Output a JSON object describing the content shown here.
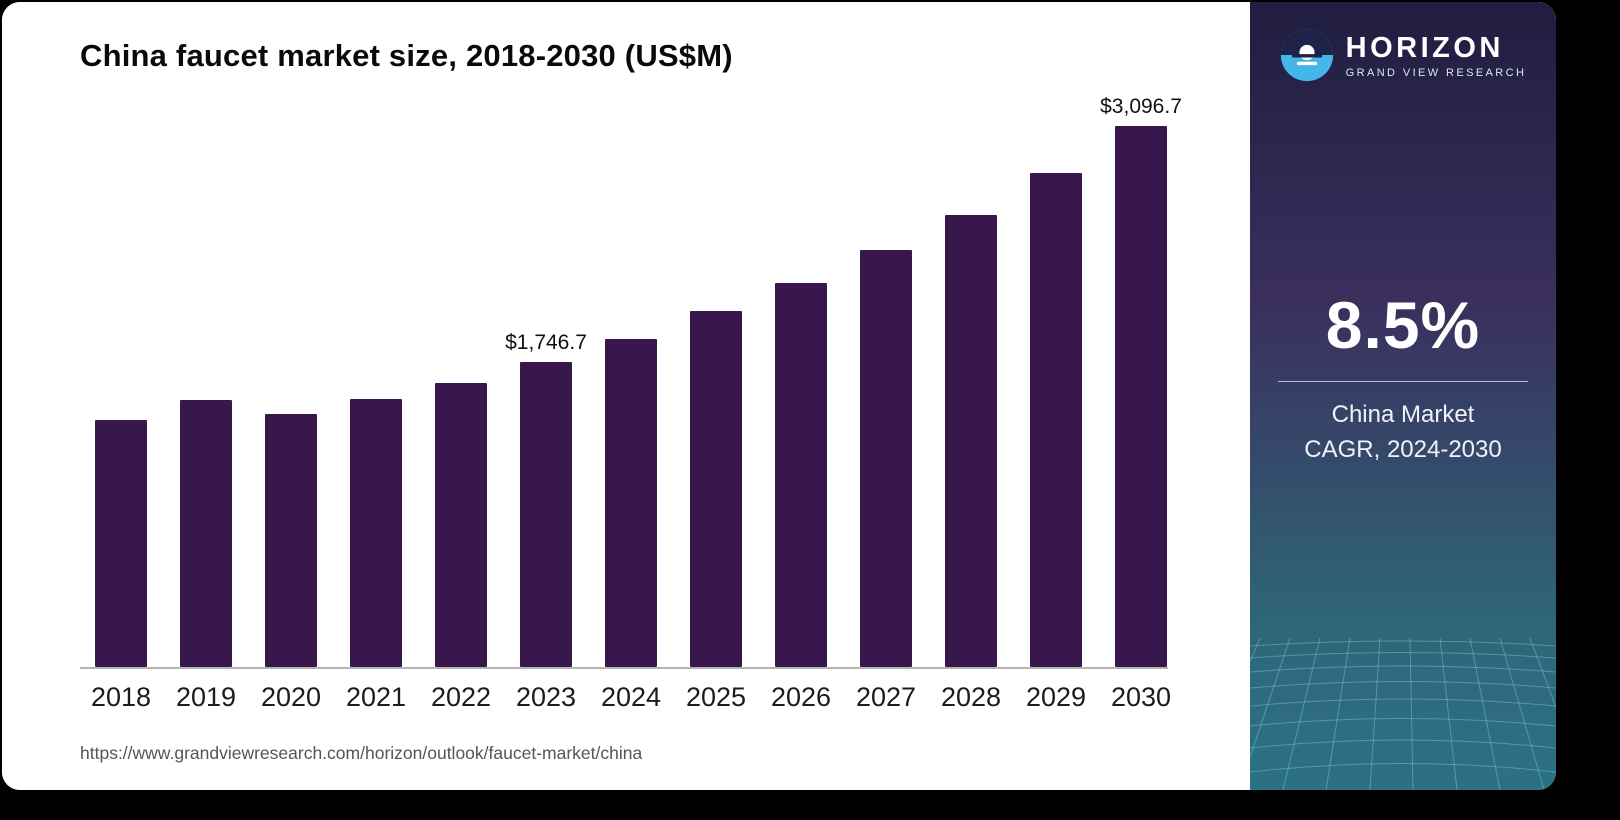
{
  "title": "China faucet market size, 2018-2030 (US$M)",
  "source_url": "https://www.grandviewresearch.com/horizon/outlook/faucet-market/china",
  "panel": {
    "brand_name": "HORIZON",
    "brand_sub": "GRAND VIEW RESEARCH",
    "stat_value": "8.5%",
    "stat_caption_line1": "China Market",
    "stat_caption_line2": "CAGR, 2024-2030"
  },
  "colors": {
    "bar": "#38184C",
    "accent_blue": "#45b6e8",
    "panel_dark": "#201d40",
    "panel_teal": "#2d7186"
  },
  "chart_data": {
    "type": "bar",
    "title": "China faucet market size, 2018-2030 (US$M)",
    "categories": [
      "2018",
      "2019",
      "2020",
      "2021",
      "2022",
      "2023",
      "2024",
      "2025",
      "2026",
      "2027",
      "2028",
      "2029",
      "2030"
    ],
    "values": [
      1415,
      1530,
      1450,
      1535,
      1627,
      1746.7,
      1878,
      2040,
      2200,
      2388,
      2590,
      2830,
      3096.7
    ],
    "value_labels": {
      "2023": "$1,746.7",
      "2030": "$3,096.7"
    },
    "xlabel": "",
    "ylabel": "",
    "ylim": [
      0,
      3200
    ],
    "grid": false,
    "legend": false,
    "note": "only 2023 and 2030 bars carry printed data labels; other values estimated from bar heights"
  }
}
